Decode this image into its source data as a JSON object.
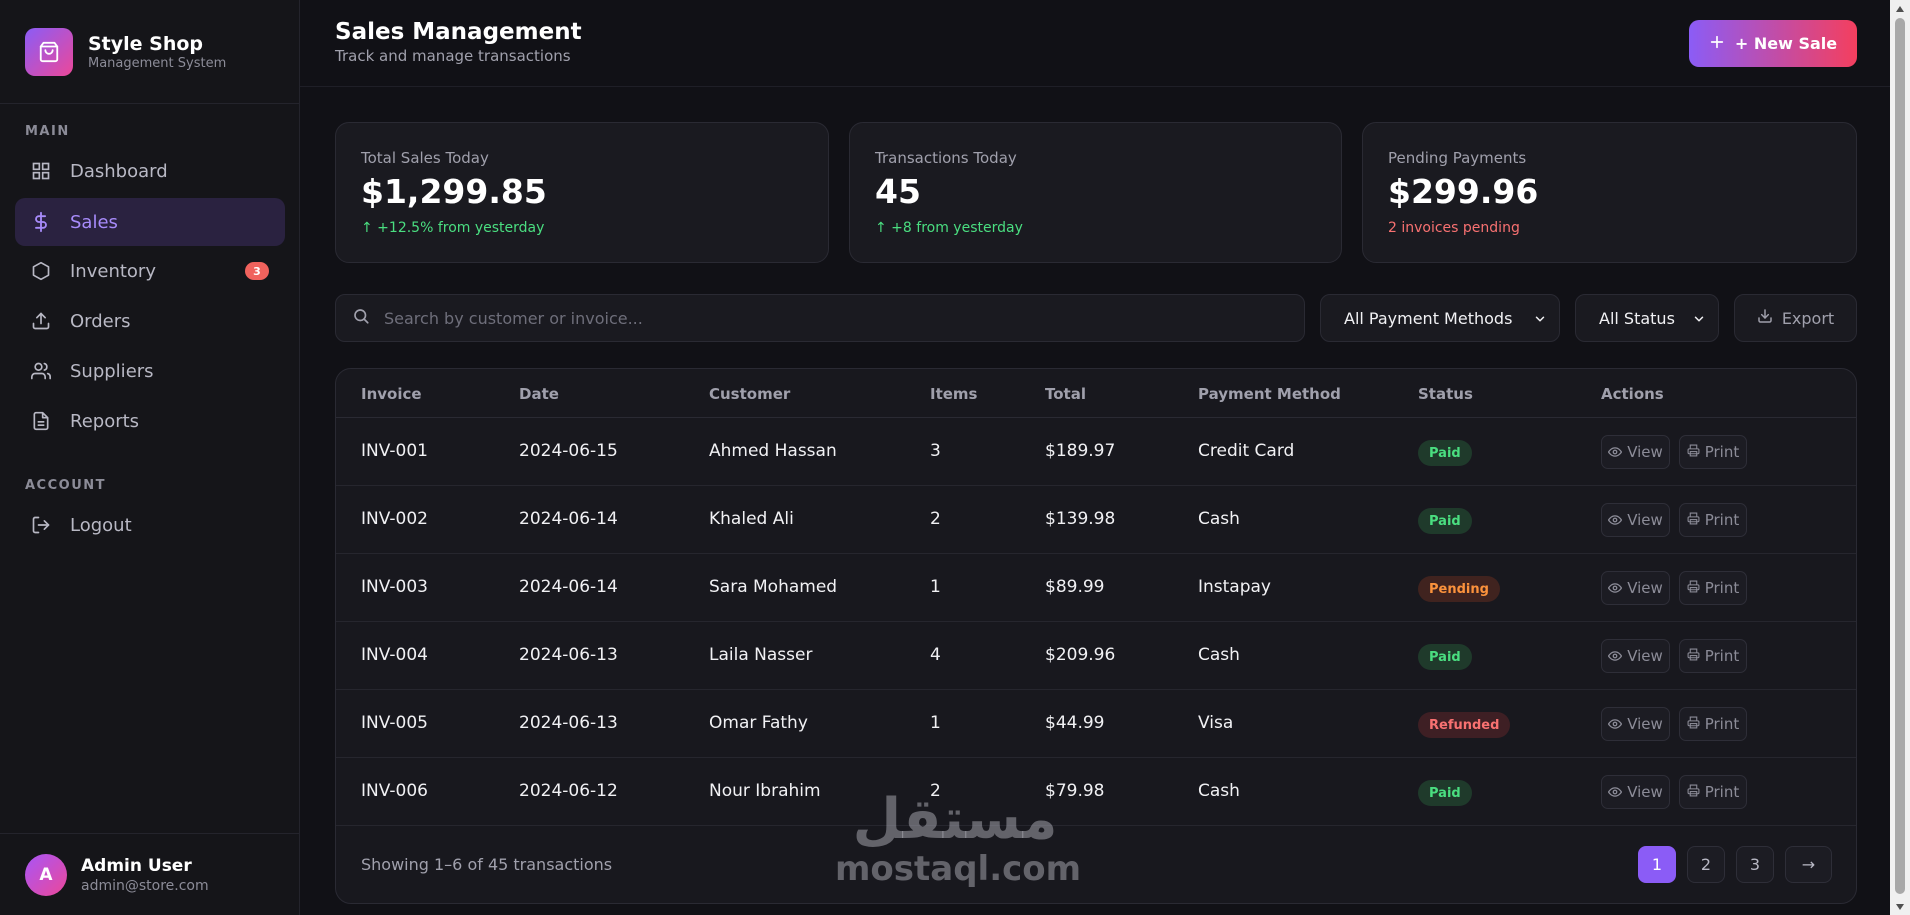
{
  "brand": {
    "name": "Style Shop",
    "subtitle": "Management System",
    "logo_icon": "shopping-bag-icon"
  },
  "sidebar": {
    "section_main": "MAIN",
    "section_account": "ACCOUNT",
    "items": [
      {
        "label": "Dashboard",
        "icon": "grid-icon",
        "active": false
      },
      {
        "label": "Sales",
        "icon": "dollar-icon",
        "active": true
      },
      {
        "label": "Inventory",
        "icon": "box-icon",
        "active": false,
        "badge": "3"
      },
      {
        "label": "Orders",
        "icon": "upload-icon",
        "active": false
      },
      {
        "label": "Suppliers",
        "icon": "users-icon",
        "active": false
      },
      {
        "label": "Reports",
        "icon": "document-icon",
        "active": false
      }
    ],
    "logout_label": "Logout",
    "user": {
      "initial": "A",
      "name": "Admin User",
      "email": "admin@store.com"
    }
  },
  "header": {
    "title": "Sales Management",
    "subtitle": "Track and manage transactions",
    "new_sale_label": "+ New Sale"
  },
  "stats": [
    {
      "label": "Total Sales Today",
      "value": "$1,299.85",
      "note": "↑ +12.5% from yesterday",
      "note_color": "#4ade80"
    },
    {
      "label": "Transactions Today",
      "value": "45",
      "note": "↑ +8 from yesterday",
      "note_color": "#4ade80"
    },
    {
      "label": "Pending Payments",
      "value": "$299.96",
      "note": "2 invoices pending",
      "note_color": "#f87171"
    }
  ],
  "filters": {
    "search_placeholder": "Search by customer or invoice...",
    "payment_method": "All Payment Methods",
    "status": "All Status",
    "export_label": "Export"
  },
  "table": {
    "columns": [
      "Invoice",
      "Date",
      "Customer",
      "Items",
      "Total",
      "Payment Method",
      "Status",
      "Actions"
    ],
    "view_label": "View",
    "print_label": "Print",
    "rows": [
      {
        "invoice": "INV-001",
        "date": "2024-06-15",
        "customer": "Ahmed Hassan",
        "items": "3",
        "total": "$189.97",
        "method": "Credit Card",
        "status": "Paid"
      },
      {
        "invoice": "INV-002",
        "date": "2024-06-14",
        "customer": "Khaled Ali",
        "items": "2",
        "total": "$139.98",
        "method": "Cash",
        "status": "Paid"
      },
      {
        "invoice": "INV-003",
        "date": "2024-06-14",
        "customer": "Sara Mohamed",
        "items": "1",
        "total": "$89.99",
        "method": "Instapay",
        "status": "Pending"
      },
      {
        "invoice": "INV-004",
        "date": "2024-06-13",
        "customer": "Laila Nasser",
        "items": "4",
        "total": "$209.96",
        "method": "Cash",
        "status": "Paid"
      },
      {
        "invoice": "INV-005",
        "date": "2024-06-13",
        "customer": "Omar Fathy",
        "items": "1",
        "total": "$44.99",
        "method": "Visa",
        "status": "Refunded"
      },
      {
        "invoice": "INV-006",
        "date": "2024-06-12",
        "customer": "Nour Ibrahim",
        "items": "2",
        "total": "$79.98",
        "method": "Cash",
        "status": "Paid"
      }
    ],
    "showing": "Showing 1–6 of 45 transactions",
    "pages": [
      "1",
      "2",
      "3",
      "→"
    ],
    "current_page": "1"
  },
  "watermark": {
    "arabic": "مستقل",
    "latin": "mostaql.com"
  },
  "colors": {
    "accent": "#8b5cf6",
    "accent_end": "#f43f5e",
    "paid": "#4ade80",
    "pending": "#fb923c",
    "refunded": "#f87171"
  }
}
